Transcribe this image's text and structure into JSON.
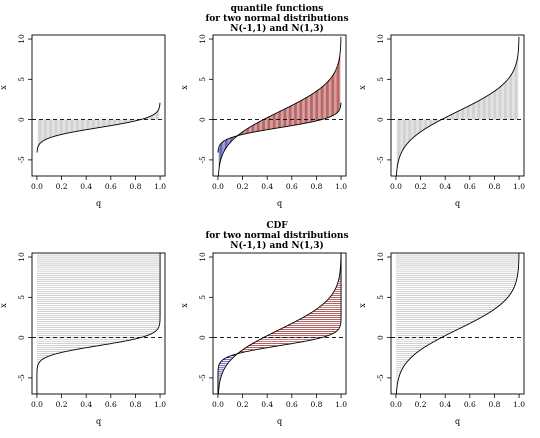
{
  "chart_data": {
    "type": "line",
    "layout": "2 rows x 3 panels",
    "distributions": [
      {
        "name": "N(-1,1)",
        "mean": -1,
        "sd": 1,
        "color": "#000000"
      },
      {
        "name": "N(1,3)",
        "mean": 1,
        "sd": 3,
        "color": "#000000"
      }
    ],
    "shading_colors": {
      "gray": "#b3b3b3",
      "blue": "#00008b",
      "red": "#8b0000"
    },
    "xlim": [
      -0.04,
      1.04
    ],
    "ylim": [
      -7,
      10.5
    ],
    "x_ticks": [
      "0.0",
      "0.2",
      "0.4",
      "0.6",
      "0.8",
      "1.0"
    ],
    "y_ticks": [
      "-5",
      "0",
      "5",
      "10"
    ],
    "xlabel": "q",
    "ylabel": "x",
    "reference_line": {
      "y": 0,
      "style": "dashed"
    },
    "rows": [
      {
        "title": [
          "quantile functions",
          "for two normal distributions",
          "N(-1,1) and N(1,3)"
        ],
        "panels": [
          {
            "curves": [
              "N(-1,1)"
            ],
            "shading": "vertical lines from x=0 to quantile of N(-1,1)"
          },
          {
            "curves": [
              "N(-1,1)",
              "N(1,3)"
            ],
            "shading": "vertical lines between the two quantile curves; blue where N(1,3) is lower, red where it is higher"
          },
          {
            "curves": [
              "N(1,3)"
            ],
            "shading": "vertical lines from x=0 to quantile of N(1,3)"
          }
        ]
      },
      {
        "title": [
          "CDF",
          "for two normal distributions",
          "N(-1,1) and N(1,3)"
        ],
        "panels": [
          {
            "curves": [
              "N(-1,1)"
            ],
            "shading": "horizontal lines from q=0 to CDF of N(-1,1)"
          },
          {
            "curves": [
              "N(-1,1)",
              "N(1,3)"
            ],
            "shading": "horizontal lines between the two CDF curves; blue where N(1,3) is lower, red where it is higher"
          },
          {
            "curves": [
              "N(1,3)"
            ],
            "shading": "horizontal lines from q=0 to CDF of N(1,3)"
          }
        ]
      }
    ]
  }
}
